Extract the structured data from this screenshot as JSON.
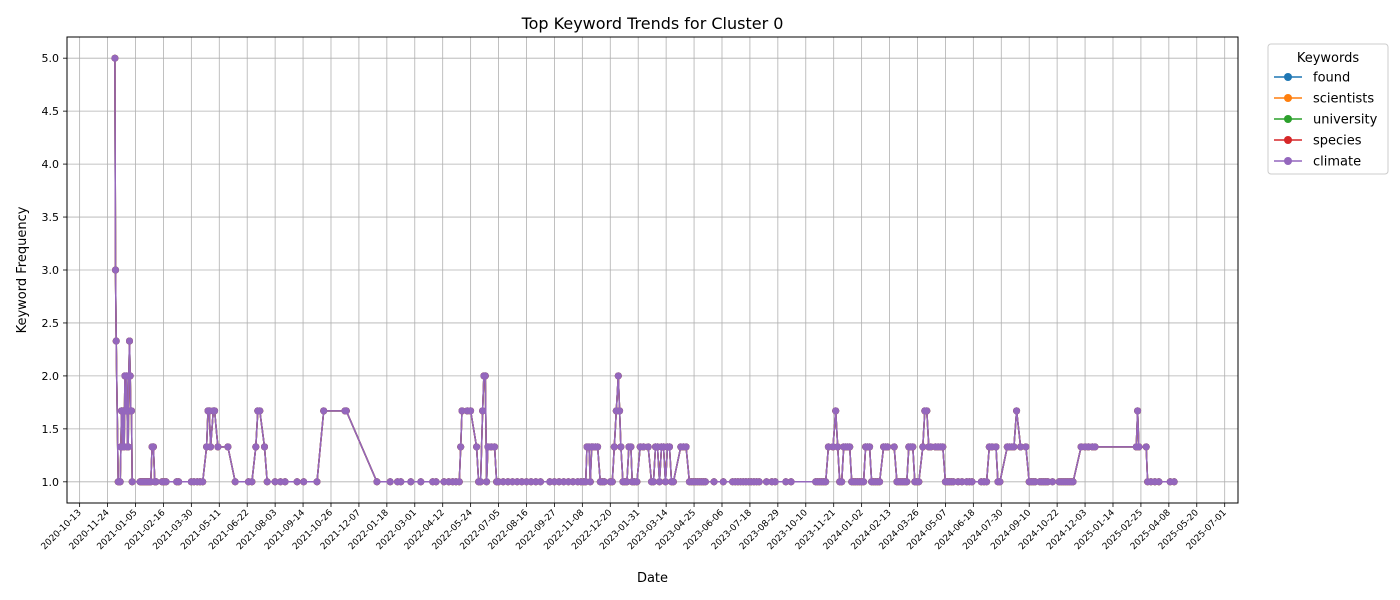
{
  "chart_data": {
    "type": "line",
    "title": "Top Keyword Trends for Cluster 0",
    "xlabel": "Date",
    "ylabel": "Keyword Frequency",
    "xlim": [
      "2020-09-24",
      "2025-07-21"
    ],
    "ylim": [
      0.8,
      5.2
    ],
    "x_ticks": [
      "2020-10-13",
      "2020-11-24",
      "2021-01-05",
      "2021-02-16",
      "2021-03-30",
      "2021-05-11",
      "2021-06-22",
      "2021-08-03",
      "2021-09-14",
      "2021-10-26",
      "2021-12-07",
      "2022-01-18",
      "2022-03-01",
      "2022-04-12",
      "2022-05-24",
      "2022-07-05",
      "2022-08-16",
      "2022-09-27",
      "2022-11-08",
      "2022-12-20",
      "2023-01-31",
      "2023-03-14",
      "2023-04-25",
      "2023-06-06",
      "2023-07-18",
      "2023-08-29",
      "2023-10-10",
      "2023-11-21",
      "2024-01-02",
      "2024-02-13",
      "2024-03-26",
      "2024-05-07",
      "2024-06-18",
      "2024-07-30",
      "2024-09-10",
      "2024-10-22",
      "2024-12-03",
      "2025-01-14",
      "2025-02-25",
      "2025-04-08",
      "2025-05-20",
      "2025-07-01"
    ],
    "y_ticks": [
      "1.0",
      "1.5",
      "2.0",
      "2.5",
      "3.0",
      "3.5",
      "4.0",
      "4.5",
      "5.0"
    ],
    "grid": true,
    "legend": {
      "title": "Keywords",
      "placement": "outside-top-right"
    },
    "colors": {
      "found": "#1f77b4",
      "scientists": "#ff7f0e",
      "university": "#2ca02c",
      "species": "#d62728",
      "climate": "#9467bd"
    },
    "series": [
      {
        "name": "found"
      },
      {
        "name": "scientists"
      },
      {
        "name": "university"
      },
      {
        "name": "species"
      },
      {
        "name": "climate"
      }
    ],
    "points": [
      [
        "2020-12-05",
        5.0
      ],
      [
        "2020-12-06",
        3.0
      ],
      [
        "2020-12-07",
        2.33
      ],
      [
        "2020-12-10",
        1.0
      ],
      [
        "2020-12-11",
        1.0
      ],
      [
        "2020-12-12",
        1.0
      ],
      [
        "2020-12-13",
        1.0
      ],
      [
        "2020-12-14",
        1.33
      ],
      [
        "2020-12-15",
        1.67
      ],
      [
        "2020-12-16",
        1.67
      ],
      [
        "2020-12-17",
        1.33
      ],
      [
        "2020-12-18",
        1.67
      ],
      [
        "2020-12-19",
        1.33
      ],
      [
        "2020-12-20",
        2.0
      ],
      [
        "2020-12-21",
        1.67
      ],
      [
        "2020-12-22",
        1.67
      ],
      [
        "2020-12-23",
        2.0
      ],
      [
        "2020-12-24",
        1.33
      ],
      [
        "2020-12-25",
        1.33
      ],
      [
        "2020-12-26",
        2.0
      ],
      [
        "2020-12-27",
        2.33
      ],
      [
        "2020-12-28",
        2.0
      ],
      [
        "2020-12-29",
        1.67
      ],
      [
        "2020-12-30",
        1.67
      ],
      [
        "2020-12-31",
        1.0
      ],
      [
        "2021-01-12",
        1.0
      ],
      [
        "2021-01-14",
        1.0
      ],
      [
        "2021-01-16",
        1.0
      ],
      [
        "2021-01-18",
        1.0
      ],
      [
        "2021-01-20",
        1.0
      ],
      [
        "2021-01-22",
        1.0
      ],
      [
        "2021-01-24",
        1.0
      ],
      [
        "2021-01-26",
        1.0
      ],
      [
        "2021-01-28",
        1.0
      ],
      [
        "2021-01-30",
        1.33
      ],
      [
        "2021-02-01",
        1.33
      ],
      [
        "2021-02-03",
        1.0
      ],
      [
        "2021-02-05",
        1.0
      ],
      [
        "2021-02-14",
        1.0
      ],
      [
        "2021-02-17",
        1.0
      ],
      [
        "2021-02-20",
        1.0
      ],
      [
        "2021-03-08",
        1.0
      ],
      [
        "2021-03-11",
        1.0
      ],
      [
        "2021-03-30",
        1.0
      ],
      [
        "2021-04-03",
        1.0
      ],
      [
        "2021-04-08",
        1.0
      ],
      [
        "2021-04-12",
        1.0
      ],
      [
        "2021-04-16",
        1.0
      ],
      [
        "2021-04-22",
        1.33
      ],
      [
        "2021-04-24",
        1.67
      ],
      [
        "2021-04-26",
        1.67
      ],
      [
        "2021-04-28",
        1.33
      ],
      [
        "2021-05-02",
        1.67
      ],
      [
        "2021-05-04",
        1.67
      ],
      [
        "2021-05-09",
        1.33
      ],
      [
        "2021-05-24",
        1.33
      ],
      [
        "2021-06-04",
        1.0
      ],
      [
        "2021-06-24",
        1.0
      ],
      [
        "2021-06-29",
        1.0
      ],
      [
        "2021-07-05",
        1.33
      ],
      [
        "2021-07-08",
        1.67
      ],
      [
        "2021-07-11",
        1.67
      ],
      [
        "2021-07-18",
        1.33
      ],
      [
        "2021-07-22",
        1.0
      ],
      [
        "2021-08-03",
        1.0
      ],
      [
        "2021-08-11",
        1.0
      ],
      [
        "2021-08-18",
        1.0
      ],
      [
        "2021-09-05",
        1.0
      ],
      [
        "2021-09-15",
        1.0
      ],
      [
        "2021-10-05",
        1.0
      ],
      [
        "2021-10-15",
        1.67
      ],
      [
        "2021-11-16",
        1.67
      ],
      [
        "2021-11-18",
        1.67
      ],
      [
        "2022-01-03",
        1.0
      ],
      [
        "2022-01-23",
        1.0
      ],
      [
        "2022-02-03",
        1.0
      ],
      [
        "2022-02-08",
        1.0
      ],
      [
        "2022-02-23",
        1.0
      ],
      [
        "2022-03-10",
        1.0
      ],
      [
        "2022-03-28",
        1.0
      ],
      [
        "2022-04-02",
        1.0
      ],
      [
        "2022-04-14",
        1.0
      ],
      [
        "2022-04-21",
        1.0
      ],
      [
        "2022-04-27",
        1.0
      ],
      [
        "2022-05-02",
        1.0
      ],
      [
        "2022-05-07",
        1.0
      ],
      [
        "2022-05-09",
        1.33
      ],
      [
        "2022-05-11",
        1.67
      ],
      [
        "2022-05-19",
        1.67
      ],
      [
        "2022-05-24",
        1.67
      ],
      [
        "2022-06-02",
        1.33
      ],
      [
        "2022-06-05",
        1.0
      ],
      [
        "2022-06-08",
        1.0
      ],
      [
        "2022-06-11",
        1.67
      ],
      [
        "2022-06-13",
        2.0
      ],
      [
        "2022-06-15",
        2.0
      ],
      [
        "2022-06-17",
        1.0
      ],
      [
        "2022-06-19",
        1.33
      ],
      [
        "2022-06-24",
        1.33
      ],
      [
        "2022-06-29",
        1.33
      ],
      [
        "2022-07-02",
        1.0
      ],
      [
        "2022-07-05",
        1.0
      ],
      [
        "2022-07-12",
        1.0
      ],
      [
        "2022-07-19",
        1.0
      ],
      [
        "2022-07-26",
        1.0
      ],
      [
        "2022-08-02",
        1.0
      ],
      [
        "2022-08-09",
        1.0
      ],
      [
        "2022-08-16",
        1.0
      ],
      [
        "2022-08-23",
        1.0
      ],
      [
        "2022-08-30",
        1.0
      ],
      [
        "2022-09-06",
        1.0
      ],
      [
        "2022-09-20",
        1.0
      ],
      [
        "2022-09-27",
        1.0
      ],
      [
        "2022-10-04",
        1.0
      ],
      [
        "2022-10-11",
        1.0
      ],
      [
        "2022-10-18",
        1.0
      ],
      [
        "2022-10-25",
        1.0
      ],
      [
        "2022-11-01",
        1.0
      ],
      [
        "2022-11-06",
        1.0
      ],
      [
        "2022-11-10",
        1.0
      ],
      [
        "2022-11-13",
        1.0
      ],
      [
        "2022-11-15",
        1.33
      ],
      [
        "2022-11-18",
        1.33
      ],
      [
        "2022-11-20",
        1.0
      ],
      [
        "2022-11-22",
        1.33
      ],
      [
        "2022-11-24",
        1.33
      ],
      [
        "2022-11-28",
        1.33
      ],
      [
        "2022-12-01",
        1.33
      ],
      [
        "2022-12-05",
        1.0
      ],
      [
        "2022-12-08",
        1.0
      ],
      [
        "2022-12-11",
        1.0
      ],
      [
        "2022-12-20",
        1.0
      ],
      [
        "2022-12-23",
        1.0
      ],
      [
        "2022-12-26",
        1.33
      ],
      [
        "2022-12-29",
        1.67
      ],
      [
        "2023-01-01",
        2.0
      ],
      [
        "2023-01-03",
        1.67
      ],
      [
        "2023-01-05",
        1.33
      ],
      [
        "2023-01-08",
        1.0
      ],
      [
        "2023-01-11",
        1.0
      ],
      [
        "2023-01-14",
        1.0
      ],
      [
        "2023-01-17",
        1.33
      ],
      [
        "2023-01-20",
        1.33
      ],
      [
        "2023-01-22",
        1.0
      ],
      [
        "2023-01-25",
        1.0
      ],
      [
        "2023-01-29",
        1.0
      ],
      [
        "2023-02-03",
        1.33
      ],
      [
        "2023-02-08",
        1.33
      ],
      [
        "2023-02-15",
        1.33
      ],
      [
        "2023-02-20",
        1.0
      ],
      [
        "2023-02-23",
        1.0
      ],
      [
        "2023-02-26",
        1.33
      ],
      [
        "2023-03-01",
        1.33
      ],
      [
        "2023-03-04",
        1.0
      ],
      [
        "2023-03-07",
        1.33
      ],
      [
        "2023-03-10",
        1.33
      ],
      [
        "2023-03-13",
        1.0
      ],
      [
        "2023-03-16",
        1.33
      ],
      [
        "2023-03-19",
        1.33
      ],
      [
        "2023-03-22",
        1.0
      ],
      [
        "2023-03-25",
        1.0
      ],
      [
        "2023-04-05",
        1.33
      ],
      [
        "2023-04-09",
        1.33
      ],
      [
        "2023-04-13",
        1.33
      ],
      [
        "2023-04-18",
        1.0
      ],
      [
        "2023-04-21",
        1.0
      ],
      [
        "2023-04-24",
        1.0
      ],
      [
        "2023-04-27",
        1.0
      ],
      [
        "2023-04-30",
        1.0
      ],
      [
        "2023-05-03",
        1.0
      ],
      [
        "2023-05-06",
        1.0
      ],
      [
        "2023-05-09",
        1.0
      ],
      [
        "2023-05-12",
        1.0
      ],
      [
        "2023-05-25",
        1.0
      ],
      [
        "2023-06-08",
        1.0
      ],
      [
        "2023-06-22",
        1.0
      ],
      [
        "2023-06-26",
        1.0
      ],
      [
        "2023-06-30",
        1.0
      ],
      [
        "2023-07-04",
        1.0
      ],
      [
        "2023-07-08",
        1.0
      ],
      [
        "2023-07-12",
        1.0
      ],
      [
        "2023-07-16",
        1.0
      ],
      [
        "2023-07-20",
        1.0
      ],
      [
        "2023-07-24",
        1.0
      ],
      [
        "2023-07-28",
        1.0
      ],
      [
        "2023-08-01",
        1.0
      ],
      [
        "2023-08-12",
        1.0
      ],
      [
        "2023-08-20",
        1.0
      ],
      [
        "2023-08-25",
        1.0
      ],
      [
        "2023-09-10",
        1.0
      ],
      [
        "2023-09-18",
        1.0
      ],
      [
        "2023-10-25",
        1.0
      ],
      [
        "2023-10-28",
        1.0
      ],
      [
        "2023-10-31",
        1.0
      ],
      [
        "2023-11-03",
        1.0
      ],
      [
        "2023-11-06",
        1.0
      ],
      [
        "2023-11-09",
        1.0
      ],
      [
        "2023-11-13",
        1.33
      ],
      [
        "2023-11-20",
        1.33
      ],
      [
        "2023-11-24",
        1.67
      ],
      [
        "2023-11-27",
        1.33
      ],
      [
        "2023-11-30",
        1.0
      ],
      [
        "2023-12-03",
        1.0
      ],
      [
        "2023-12-06",
        1.33
      ],
      [
        "2023-12-09",
        1.33
      ],
      [
        "2023-12-12",
        1.33
      ],
      [
        "2023-12-15",
        1.33
      ],
      [
        "2023-12-18",
        1.0
      ],
      [
        "2023-12-21",
        1.0
      ],
      [
        "2023-12-24",
        1.0
      ],
      [
        "2023-12-27",
        1.0
      ],
      [
        "2023-12-30",
        1.0
      ],
      [
        "2024-01-02",
        1.0
      ],
      [
        "2024-01-05",
        1.0
      ],
      [
        "2024-01-08",
        1.33
      ],
      [
        "2024-01-11",
        1.33
      ],
      [
        "2024-01-14",
        1.33
      ],
      [
        "2024-01-17",
        1.0
      ],
      [
        "2024-01-20",
        1.0
      ],
      [
        "2024-01-23",
        1.0
      ],
      [
        "2024-01-26",
        1.0
      ],
      [
        "2024-01-29",
        1.0
      ],
      [
        "2024-02-04",
        1.33
      ],
      [
        "2024-02-07",
        1.33
      ],
      [
        "2024-02-10",
        1.33
      ],
      [
        "2024-02-20",
        1.33
      ],
      [
        "2024-02-24",
        1.0
      ],
      [
        "2024-02-27",
        1.0
      ],
      [
        "2024-03-01",
        1.0
      ],
      [
        "2024-03-04",
        1.0
      ],
      [
        "2024-03-07",
        1.0
      ],
      [
        "2024-03-10",
        1.0
      ],
      [
        "2024-03-13",
        1.33
      ],
      [
        "2024-03-16",
        1.33
      ],
      [
        "2024-03-19",
        1.33
      ],
      [
        "2024-03-22",
        1.0
      ],
      [
        "2024-03-25",
        1.0
      ],
      [
        "2024-03-28",
        1.0
      ],
      [
        "2024-04-03",
        1.33
      ],
      [
        "2024-04-06",
        1.67
      ],
      [
        "2024-04-09",
        1.67
      ],
      [
        "2024-04-12",
        1.33
      ],
      [
        "2024-04-15",
        1.33
      ],
      [
        "2024-04-22",
        1.33
      ],
      [
        "2024-04-26",
        1.33
      ],
      [
        "2024-04-30",
        1.33
      ],
      [
        "2024-05-03",
        1.33
      ],
      [
        "2024-05-07",
        1.0
      ],
      [
        "2024-05-10",
        1.0
      ],
      [
        "2024-05-13",
        1.0
      ],
      [
        "2024-05-16",
        1.0
      ],
      [
        "2024-05-19",
        1.0
      ],
      [
        "2024-05-26",
        1.0
      ],
      [
        "2024-06-01",
        1.0
      ],
      [
        "2024-06-08",
        1.0
      ],
      [
        "2024-06-12",
        1.0
      ],
      [
        "2024-06-16",
        1.0
      ],
      [
        "2024-06-30",
        1.0
      ],
      [
        "2024-07-04",
        1.0
      ],
      [
        "2024-07-08",
        1.0
      ],
      [
        "2024-07-12",
        1.33
      ],
      [
        "2024-07-16",
        1.33
      ],
      [
        "2024-07-22",
        1.33
      ],
      [
        "2024-07-25",
        1.0
      ],
      [
        "2024-07-28",
        1.0
      ],
      [
        "2024-08-08",
        1.33
      ],
      [
        "2024-08-11",
        1.33
      ],
      [
        "2024-08-15",
        1.33
      ],
      [
        "2024-08-18",
        1.33
      ],
      [
        "2024-08-22",
        1.67
      ],
      [
        "2024-08-28",
        1.33
      ],
      [
        "2024-09-05",
        1.33
      ],
      [
        "2024-09-10",
        1.0
      ],
      [
        "2024-09-13",
        1.0
      ],
      [
        "2024-09-16",
        1.0
      ],
      [
        "2024-09-19",
        1.0
      ],
      [
        "2024-09-26",
        1.0
      ],
      [
        "2024-09-29",
        1.0
      ],
      [
        "2024-10-02",
        1.0
      ],
      [
        "2024-10-05",
        1.0
      ],
      [
        "2024-10-08",
        1.0
      ],
      [
        "2024-10-15",
        1.0
      ],
      [
        "2024-10-25",
        1.0
      ],
      [
        "2024-10-28",
        1.0
      ],
      [
        "2024-10-31",
        1.0
      ],
      [
        "2024-11-03",
        1.0
      ],
      [
        "2024-11-06",
        1.0
      ],
      [
        "2024-11-09",
        1.0
      ],
      [
        "2024-11-12",
        1.0
      ],
      [
        "2024-11-15",
        1.0
      ],
      [
        "2024-11-27",
        1.33
      ],
      [
        "2024-12-03",
        1.33
      ],
      [
        "2024-12-08",
        1.33
      ],
      [
        "2024-12-14",
        1.33
      ],
      [
        "2024-12-18",
        1.33
      ],
      [
        "2025-02-18",
        1.33
      ],
      [
        "2025-02-20",
        1.67
      ],
      [
        "2025-02-22",
        1.33
      ],
      [
        "2025-03-05",
        1.33
      ],
      [
        "2025-03-07",
        1.0
      ],
      [
        "2025-03-12",
        1.0
      ],
      [
        "2025-03-18",
        1.0
      ],
      [
        "2025-03-24",
        1.0
      ],
      [
        "2025-04-10",
        1.0
      ],
      [
        "2025-04-16",
        1.0
      ]
    ]
  }
}
